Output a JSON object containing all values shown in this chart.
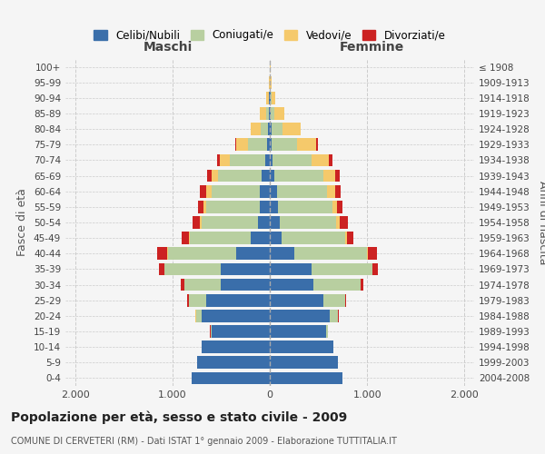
{
  "age_groups": [
    "100+",
    "95-99",
    "90-94",
    "85-89",
    "80-84",
    "75-79",
    "70-74",
    "65-69",
    "60-64",
    "55-59",
    "50-54",
    "45-49",
    "40-44",
    "35-39",
    "30-34",
    "25-29",
    "20-24",
    "15-19",
    "10-14",
    "5-9",
    "0-4"
  ],
  "birth_years": [
    "≤ 1908",
    "1909-1913",
    "1914-1918",
    "1919-1923",
    "1924-1928",
    "1929-1933",
    "1934-1938",
    "1939-1943",
    "1944-1948",
    "1949-1953",
    "1954-1958",
    "1959-1963",
    "1964-1968",
    "1969-1973",
    "1974-1978",
    "1979-1983",
    "1984-1988",
    "1989-1993",
    "1994-1998",
    "1999-2003",
    "2004-2008"
  ],
  "colors": {
    "celibi": "#3a6eaa",
    "coniugati": "#b8cfa0",
    "vedovi": "#f5c96b",
    "divorziati": "#cc2222"
  },
  "males": {
    "celibi": [
      2,
      2,
      5,
      10,
      15,
      25,
      50,
      80,
      100,
      100,
      120,
      200,
      350,
      500,
      500,
      650,
      700,
      600,
      700,
      750,
      800
    ],
    "coniugati": [
      0,
      2,
      8,
      30,
      80,
      200,
      360,
      450,
      500,
      550,
      580,
      620,
      700,
      580,
      380,
      180,
      60,
      10,
      2,
      0,
      0
    ],
    "vedovi": [
      2,
      5,
      20,
      60,
      100,
      120,
      100,
      70,
      50,
      30,
      15,
      8,
      5,
      3,
      2,
      2,
      2,
      0,
      0,
      0,
      0
    ],
    "divorziati": [
      0,
      0,
      0,
      2,
      5,
      8,
      30,
      40,
      70,
      60,
      80,
      80,
      100,
      60,
      30,
      15,
      5,
      2,
      0,
      0,
      0
    ]
  },
  "females": {
    "celibi": [
      2,
      2,
      5,
      10,
      15,
      20,
      30,
      50,
      70,
      80,
      100,
      120,
      250,
      430,
      450,
      550,
      620,
      580,
      650,
      700,
      750
    ],
    "coniugati": [
      0,
      2,
      10,
      40,
      120,
      260,
      400,
      500,
      520,
      560,
      580,
      650,
      750,
      620,
      480,
      220,
      80,
      15,
      3,
      0,
      0
    ],
    "vedovi": [
      3,
      10,
      40,
      100,
      180,
      200,
      180,
      120,
      80,
      50,
      40,
      20,
      10,
      5,
      3,
      2,
      2,
      0,
      0,
      0,
      0
    ],
    "divorziati": [
      0,
      0,
      0,
      2,
      5,
      10,
      30,
      50,
      60,
      60,
      80,
      70,
      90,
      60,
      25,
      10,
      5,
      2,
      0,
      0,
      0
    ]
  },
  "title": "Popolazione per età, sesso e stato civile - 2009",
  "subtitle": "COMUNE DI CERVETERI (RM) - Dati ISTAT 1° gennaio 2009 - Elaborazione TUTTITALIA.IT",
  "xlabel_left": "Maschi",
  "xlabel_right": "Femmine",
  "ylabel_left": "Fasce di età",
  "ylabel_right": "Anni di nascita",
  "xlim": 2100,
  "background_color": "#f5f5f5",
  "grid_color": "#cccccc"
}
